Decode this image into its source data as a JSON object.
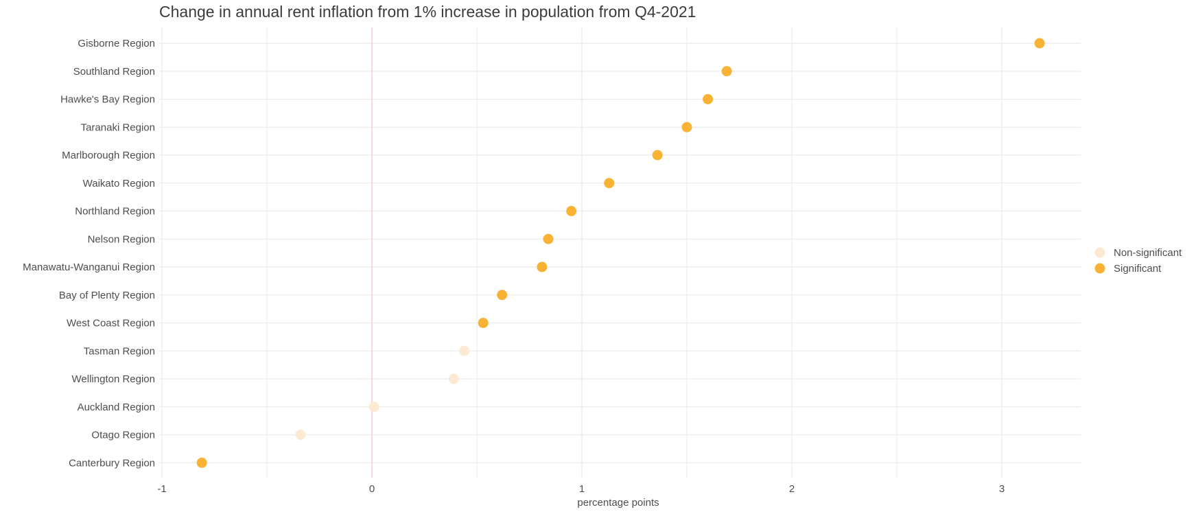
{
  "chart_data": {
    "type": "scatter",
    "title": "Change in annual rent inflation from 1% increase in population from Q4-2021",
    "xlabel": "percentage points",
    "ylabel": "",
    "xlim": [
      -1,
      3.38
    ],
    "x_ticks": [
      -1,
      0,
      1,
      2,
      3
    ],
    "x_tick_labels": [
      "-1",
      "0",
      "1",
      "2",
      "3"
    ],
    "reference_line_x": 0,
    "grid": true,
    "legend_position": "right",
    "colors": {
      "Significant": "#F9B233",
      "Non-significant": "#FCEBD2",
      "reference_line": "#F4C7CB",
      "grid": "#EBEBEB"
    },
    "legend": [
      "Non-significant",
      "Significant"
    ],
    "categories": [
      "Gisborne Region",
      "Southland Region",
      "Hawke's Bay Region",
      "Taranaki Region",
      "Marlborough Region",
      "Waikato Region",
      "Northland Region",
      "Nelson Region",
      "Manawatu-Wanganui Region",
      "Bay of Plenty Region",
      "West Coast Region",
      "Tasman Region",
      "Wellington Region",
      "Auckland Region",
      "Otago Region",
      "Canterbury Region"
    ],
    "points": [
      {
        "region": "Gisborne Region",
        "x": 3.18,
        "group": "Significant"
      },
      {
        "region": "Southland Region",
        "x": 1.69,
        "group": "Significant"
      },
      {
        "region": "Hawke's Bay Region",
        "x": 1.6,
        "group": "Significant"
      },
      {
        "region": "Taranaki Region",
        "x": 1.5,
        "group": "Significant"
      },
      {
        "region": "Marlborough Region",
        "x": 1.36,
        "group": "Significant"
      },
      {
        "region": "Waikato Region",
        "x": 1.13,
        "group": "Significant"
      },
      {
        "region": "Northland Region",
        "x": 0.95,
        "group": "Significant"
      },
      {
        "region": "Nelson Region",
        "x": 0.84,
        "group": "Significant"
      },
      {
        "region": "Manawatu-Wanganui Region",
        "x": 0.81,
        "group": "Significant"
      },
      {
        "region": "Bay of Plenty Region",
        "x": 0.62,
        "group": "Significant"
      },
      {
        "region": "West Coast Region",
        "x": 0.53,
        "group": "Significant"
      },
      {
        "region": "Tasman Region",
        "x": 0.44,
        "group": "Non-significant"
      },
      {
        "region": "Wellington Region",
        "x": 0.39,
        "group": "Non-significant"
      },
      {
        "region": "Auckland Region",
        "x": 0.01,
        "group": "Non-significant"
      },
      {
        "region": "Otago Region",
        "x": -0.34,
        "group": "Non-significant"
      },
      {
        "region": "Canterbury Region",
        "x": -0.81,
        "group": "Significant"
      }
    ]
  }
}
